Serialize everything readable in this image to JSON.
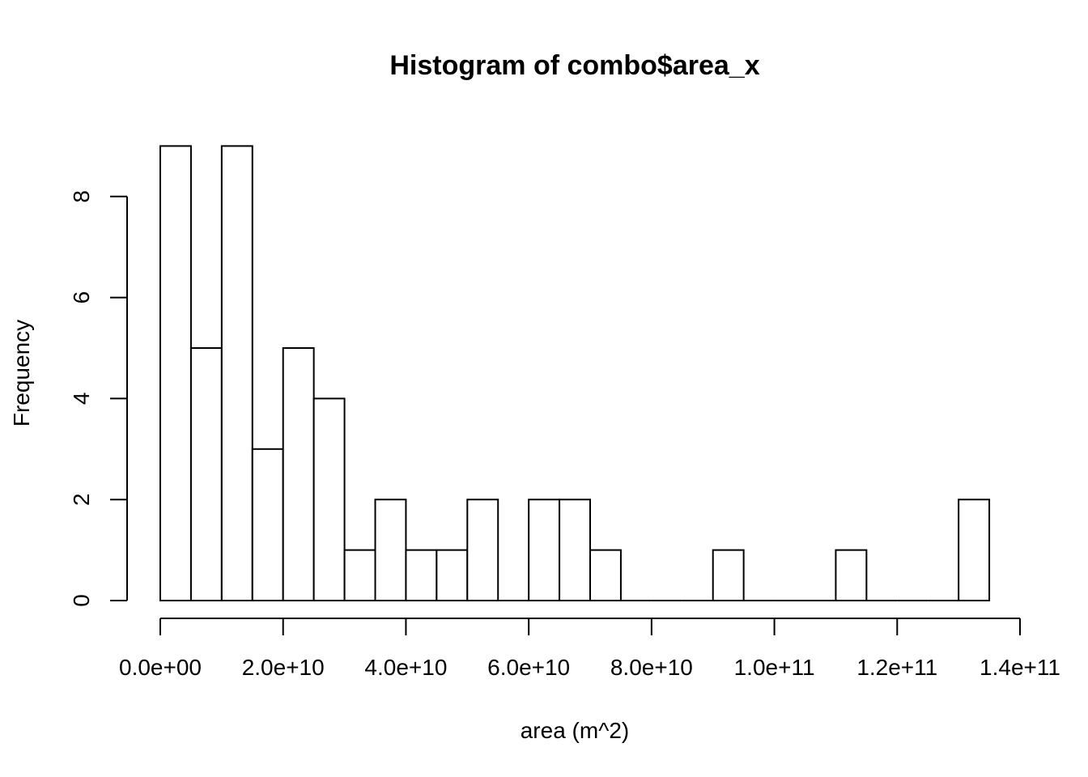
{
  "chart_data": {
    "type": "bar",
    "title": "Histogram of combo$area_x",
    "xlabel": "area (m^2)",
    "ylabel": "Frequency",
    "bin_edges": [
      0,
      5000000000.0,
      10000000000.0,
      15000000000.0,
      20000000000.0,
      25000000000.0,
      30000000000.0,
      35000000000.0,
      40000000000.0,
      45000000000.0,
      50000000000.0,
      55000000000.0,
      60000000000.0,
      65000000000.0,
      70000000000.0,
      75000000000.0,
      80000000000.0,
      85000000000.0,
      90000000000.0,
      95000000000.0,
      100000000000.0,
      105000000000.0,
      110000000000.0,
      115000000000.0,
      120000000000.0,
      125000000000.0,
      130000000000.0,
      135000000000.0
    ],
    "values": [
      9,
      5,
      9,
      3,
      5,
      4,
      1,
      2,
      1,
      1,
      2,
      0,
      2,
      2,
      1,
      0,
      0,
      0,
      1,
      0,
      0,
      0,
      1,
      0,
      0,
      0,
      2
    ],
    "xlim": [
      0,
      140000000000.0
    ],
    "ylim": [
      0,
      9
    ],
    "x_ticks": [
      0,
      20000000000.0,
      40000000000.0,
      60000000000.0,
      80000000000.0,
      100000000000.0,
      120000000000.0,
      140000000000.0
    ],
    "x_tick_labels": [
      "0.0e+00",
      "2.0e+10",
      "4.0e+10",
      "6.0e+10",
      "8.0e+10",
      "1.0e+11",
      "1.2e+11",
      "1.4e+11"
    ],
    "y_ticks": [
      0,
      2,
      4,
      6,
      8
    ],
    "y_tick_labels": [
      "0",
      "2",
      "4",
      "6",
      "8"
    ],
    "grid": false,
    "legend": "none",
    "bar_fill": "#ffffff",
    "bar_stroke": "#000000"
  }
}
